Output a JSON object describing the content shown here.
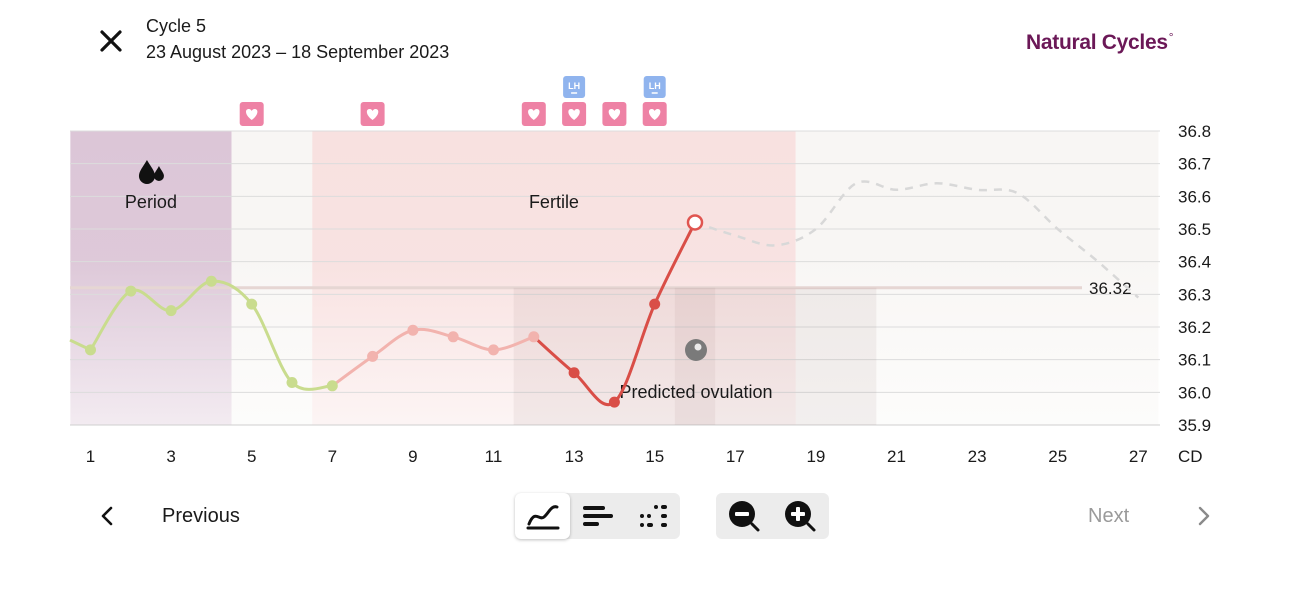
{
  "header": {
    "cycle_title": "Cycle 5",
    "cycle_dates": "23 August 2023 – 18 September 2023",
    "brand": "Natural Cycles",
    "brand_mark": "°"
  },
  "chart_data": {
    "type": "line",
    "xlabel": "CD",
    "ylim": [
      35.9,
      36.8
    ],
    "yticks": [
      "36.8",
      "36.7",
      "36.6",
      "36.5",
      "36.4",
      "36.3",
      "36.2",
      "36.1",
      "36.0",
      "35.9"
    ],
    "xticks": [
      "1",
      "3",
      "5",
      "7",
      "9",
      "11",
      "13",
      "15",
      "17",
      "19",
      "21",
      "23",
      "25",
      "27"
    ],
    "cover_line": {
      "value": 36.32,
      "label": "36.32"
    },
    "series": [
      {
        "phase": "period-infertile",
        "color": "#c9dc8e",
        "x": [
          1,
          2,
          3,
          4,
          5,
          6,
          7
        ],
        "y": [
          36.13,
          36.31,
          36.25,
          36.34,
          36.27,
          36.03,
          36.02
        ]
      },
      {
        "phase": "fertile-early",
        "color": "#f2b3ae",
        "x": [
          7,
          8,
          9,
          10,
          11,
          12
        ],
        "y": [
          36.02,
          36.11,
          36.19,
          36.17,
          36.13,
          36.17
        ]
      },
      {
        "phase": "fertile-late",
        "color": "#d94e47",
        "x": [
          12,
          13,
          14,
          15,
          16
        ],
        "y": [
          36.17,
          36.06,
          35.97,
          36.27,
          36.52
        ]
      }
    ],
    "prediction": {
      "x": [
        16,
        17,
        18,
        19,
        20,
        21,
        22,
        23,
        24,
        25,
        26,
        27
      ],
      "y": [
        36.52,
        36.48,
        36.45,
        36.5,
        36.64,
        36.62,
        36.64,
        36.62,
        36.61,
        36.5,
        36.4,
        36.29
      ]
    },
    "regions": [
      {
        "label": "Period",
        "from": 0.5,
        "to": 4.5,
        "color": "#dcc6d7"
      },
      {
        "label": "Fertile",
        "from": 6.5,
        "to": 18.5,
        "color": "#f8e1e0"
      },
      {
        "label": "",
        "from": 4.5,
        "to": 6.5,
        "color": "#f8f6f4"
      },
      {
        "label": "",
        "from": 18.5,
        "to": 27.5,
        "color": "#f8f6f4"
      }
    ],
    "ovulation": {
      "label": "Predicted ovulation",
      "from": 11.5,
      "to": 20.5,
      "day": 16
    },
    "sex_markers": [
      5,
      8,
      12,
      13,
      14,
      15
    ],
    "lh_markers": [
      {
        "day": 13,
        "label": "LH"
      },
      {
        "day": 15,
        "label": "LH"
      }
    ]
  },
  "nav": {
    "previous_label": "Previous",
    "next_label": "Next"
  },
  "view_modes": [
    {
      "name": "graph",
      "active": true
    },
    {
      "name": "list",
      "active": false
    },
    {
      "name": "dots",
      "active": false
    }
  ],
  "colors": {
    "brand": "#6b1857",
    "period_bg": "#dcc6d7",
    "fertile_bg": "#f8e1e0",
    "sex_marker": "#ee82a5",
    "lh_marker": "#90b4ee",
    "cover_line": "#e6d6d3"
  }
}
